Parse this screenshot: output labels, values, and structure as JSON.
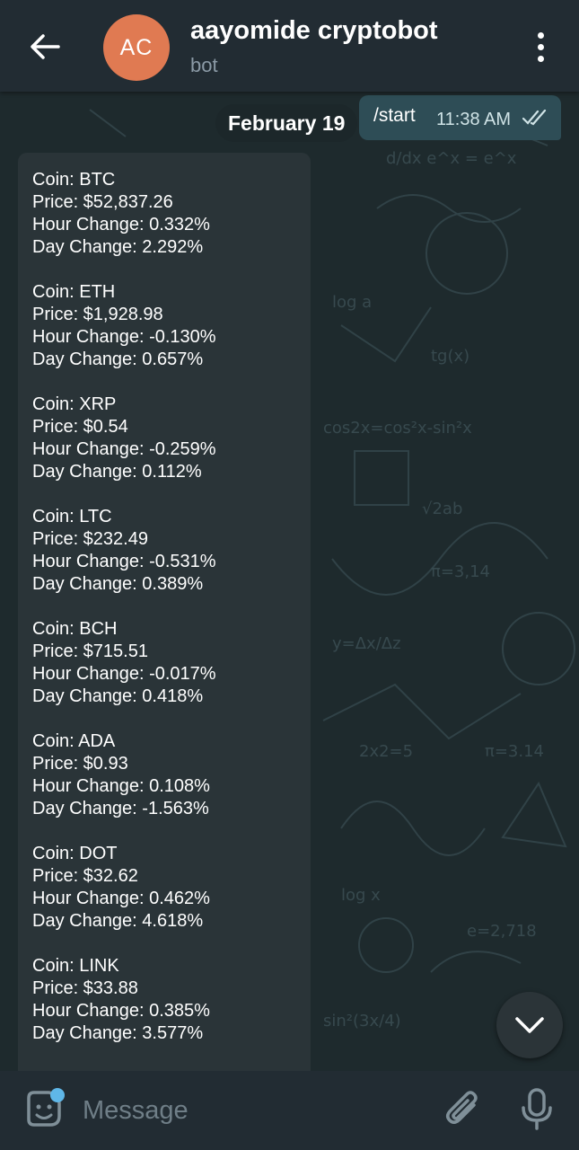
{
  "header": {
    "avatar_initials": "AC",
    "avatar_color": "#e07a52",
    "title": "aayomide cryptobot",
    "subtitle": "bot",
    "back_icon": "arrow-left-icon",
    "menu_icon": "more-vertical-icon"
  },
  "chat": {
    "date_label": "February 19",
    "outgoing": {
      "text": "/start",
      "time": "11:38 AM",
      "status_icon": "double-check-icon"
    },
    "coins": [
      {
        "coin": "Coin: BTC",
        "price": "Price: $52,837.26",
        "hour": "Hour Change: 0.332%",
        "day": "Day Change: 2.292%"
      },
      {
        "coin": "Coin: ETH",
        "price": "Price: $1,928.98",
        "hour": "Hour Change: -0.130%",
        "day": "Day Change: 0.657%"
      },
      {
        "coin": "Coin: XRP",
        "price": "Price: $0.54",
        "hour": "Hour Change: -0.259%",
        "day": "Day Change: 0.112%"
      },
      {
        "coin": "Coin: LTC",
        "price": "Price: $232.49",
        "hour": "Hour Change: -0.531%",
        "day": "Day Change: 0.389%"
      },
      {
        "coin": "Coin: BCH",
        "price": "Price: $715.51",
        "hour": "Hour Change: -0.017%",
        "day": "Day Change: 0.418%"
      },
      {
        "coin": "Coin: ADA",
        "price": "Price: $0.93",
        "hour": "Hour Change: 0.108%",
        "day": "Day Change: -1.563%"
      },
      {
        "coin": "Coin: DOT",
        "price": "Price: $32.62",
        "hour": "Hour Change: 0.462%",
        "day": "Day Change: 4.618%"
      },
      {
        "coin": "Coin: LINK",
        "price": "Price: $33.88",
        "hour": "Hour Change: 0.385%",
        "day": "Day Change: 3.577%"
      }
    ]
  },
  "input": {
    "placeholder": "Message",
    "sticker_icon": "sticker-icon",
    "attach_icon": "paperclip-icon",
    "mic_icon": "microphone-icon"
  },
  "scroll_down_icon": "chevron-down-icon"
}
